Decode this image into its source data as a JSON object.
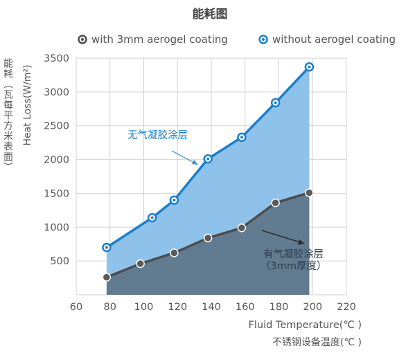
{
  "chart_data": {
    "type": "area",
    "title": "能耗图",
    "ylabel_cn": "能耗（瓦每平方米表面）",
    "ylabel_en": "Heat Loss(W/m²)",
    "xlabel_en": "Fluid Temperature(℃ )",
    "xlabel_cn": "不锈钢设备温度(℃ )",
    "xlim": [
      60,
      220
    ],
    "ylim": [
      0,
      3500
    ],
    "x_ticks": [
      60,
      80,
      100,
      120,
      140,
      160,
      180,
      200,
      220
    ],
    "y_ticks": [
      500,
      1000,
      1500,
      2000,
      2500,
      3000,
      3500
    ],
    "grid": true,
    "legend_position": "top",
    "series": [
      {
        "name": "without aerogel coating",
        "color": "#1a7fcc",
        "fill": "#8ec2ea",
        "x": [
          78,
          105,
          118,
          138,
          158,
          178,
          198
        ],
        "values": [
          700,
          1140,
          1400,
          2010,
          2330,
          2840,
          3370
        ]
      },
      {
        "name": "with 3mm aerogel coating",
        "color": "#4d4d4d",
        "fill": "#617b91",
        "x": [
          78,
          98,
          118,
          138,
          158,
          178,
          198
        ],
        "values": [
          260,
          460,
          620,
          840,
          990,
          1360,
          1510
        ]
      }
    ],
    "annotations": [
      {
        "text": "无气凝胶涂层",
        "series": "without aerogel coating"
      },
      {
        "text": "有气凝胶涂层",
        "text2": "（3mm厚度）",
        "series": "with 3mm aerogel coating"
      }
    ]
  }
}
